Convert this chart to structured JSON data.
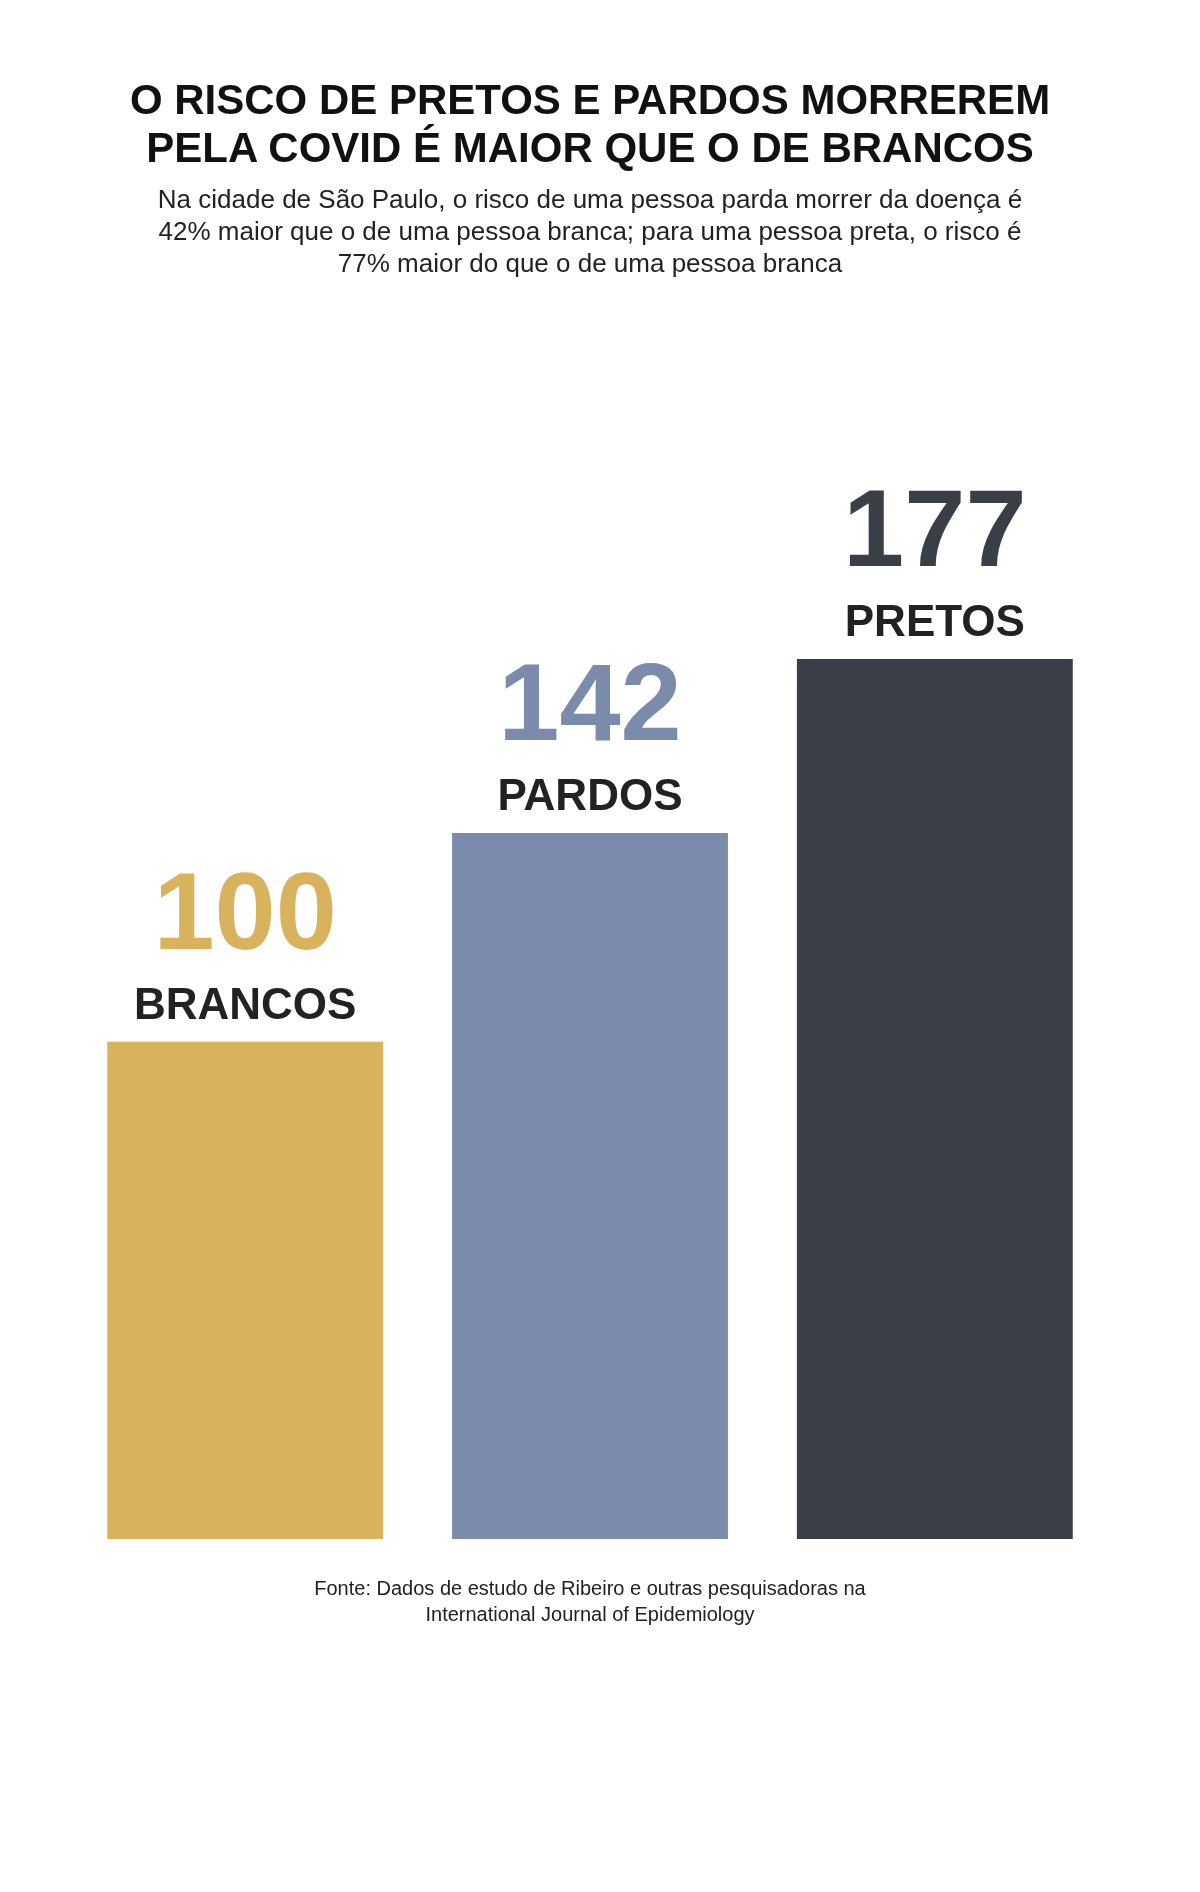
{
  "chart_data": {
    "type": "bar",
    "title": "O RISCO DE PRETOS E PARDOS MORREREM PELA COVID É MAIOR QUE O DE BRANCOS",
    "subtitle": "Na cidade de São Paulo, o risco de uma pessoa parda morrer da doença é 42% maior que o de uma pessoa branca; para uma pessoa preta, o risco é 77% maior do que o de uma pessoa branca",
    "categories": [
      "BRANCOS",
      "PARDOS",
      "PRETOS"
    ],
    "values": [
      100,
      142,
      177
    ],
    "colors": [
      "#d9b25e",
      "#7a8bab",
      "#3a3f47"
    ],
    "data_labels": true,
    "annotations": [
      "Fonte: Dados de estudo de Ribeiro e outras pesquisadoras na International Journal of Epidemiology"
    ]
  }
}
